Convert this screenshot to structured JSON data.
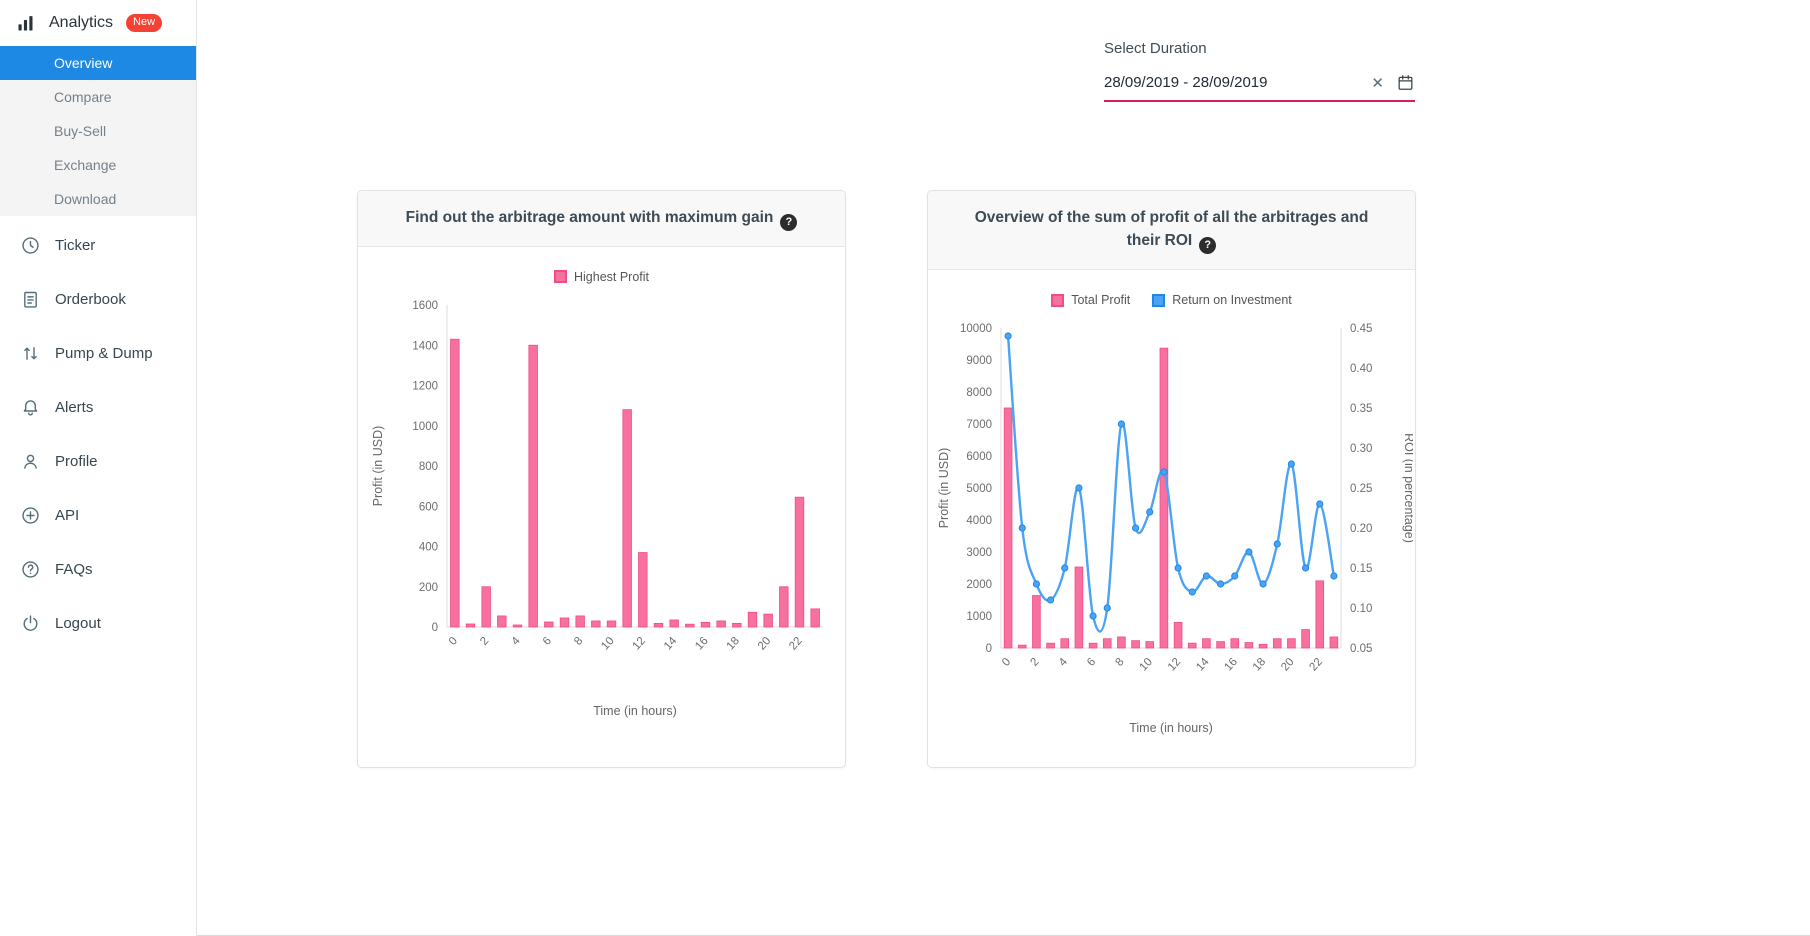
{
  "colors": {
    "active_blue": "#1E88E5",
    "badge_red": "#F44336",
    "underline_pink": "#D81B60",
    "bar_pink": "#F8709F",
    "bar_pink_border": "#EE4D86",
    "line_blue": "#4BA3F5",
    "line_blue_border": "#1E88E5"
  },
  "sidebar": {
    "brand": {
      "label": "Analytics",
      "badge": "New"
    },
    "submenu": [
      {
        "label": "Overview",
        "active": true
      },
      {
        "label": "Compare",
        "active": false
      },
      {
        "label": "Buy-Sell",
        "active": false
      },
      {
        "label": "Exchange",
        "active": false
      },
      {
        "label": "Download",
        "active": false
      }
    ],
    "items": [
      {
        "icon": "clock-icon",
        "label": "Ticker"
      },
      {
        "icon": "orderbook-icon",
        "label": "Orderbook"
      },
      {
        "icon": "pump-dump-icon",
        "label": "Pump & Dump"
      },
      {
        "icon": "bell-icon",
        "label": "Alerts"
      },
      {
        "icon": "profile-icon",
        "label": "Profile"
      },
      {
        "icon": "api-icon",
        "label": "API"
      },
      {
        "icon": "question-icon",
        "label": "FAQs"
      },
      {
        "icon": "power-icon",
        "label": "Logout"
      }
    ]
  },
  "duration": {
    "label": "Select Duration",
    "value": "28/09/2019 - 28/09/2019"
  },
  "chart_data": [
    {
      "type": "bar",
      "title": "Find out the arbitrage amount with maximum gain",
      "xlabel": "Time (in hours)",
      "ylabel": "Profit (in USD)",
      "ylim": [
        0,
        1600
      ],
      "ytick_step": 200,
      "xtick_every": 2,
      "grid": false,
      "legend_position": "top",
      "categories": [
        "0",
        "1",
        "2",
        "3",
        "4",
        "5",
        "6",
        "7",
        "8",
        "9",
        "10",
        "11",
        "12",
        "13",
        "14",
        "15",
        "16",
        "17",
        "18",
        "19",
        "20",
        "21",
        "22",
        "23"
      ],
      "series": [
        {
          "name": "Highest Profit",
          "type": "bar",
          "axis": "left",
          "color": "#F8709F",
          "border": "#EE4D86",
          "values": [
            1430,
            15,
            200,
            55,
            10,
            1400,
            25,
            45,
            55,
            30,
            30,
            1080,
            370,
            18,
            35,
            14,
            23,
            30,
            18,
            73,
            64,
            200,
            645,
            90
          ]
        }
      ]
    },
    {
      "type": "bar+line",
      "title": "Overview of the sum of profit of all the arbitrages and their ROI",
      "xlabel": "Time (in hours)",
      "ylabel_left": "Profit (in USD)",
      "ylabel_right": "ROI (in percentage)",
      "ylim_left": [
        0,
        10000
      ],
      "ytick_left_step": 1000,
      "ylim_right": [
        0.05,
        0.45
      ],
      "ytick_right_step": 0.05,
      "xtick_every": 2,
      "grid": false,
      "legend_position": "top",
      "categories": [
        "0",
        "1",
        "2",
        "3",
        "4",
        "5",
        "6",
        "7",
        "8",
        "9",
        "10",
        "11",
        "12",
        "13",
        "14",
        "15",
        "16",
        "17",
        "18",
        "19",
        "20",
        "21",
        "22",
        "23"
      ],
      "series": [
        {
          "name": "Total Profit",
          "type": "bar",
          "axis": "left",
          "color": "#F8709F",
          "border": "#EE4D86",
          "values": [
            7500,
            90,
            1640,
            150,
            290,
            2530,
            150,
            290,
            345,
            230,
            200,
            9370,
            800,
            150,
            290,
            200,
            290,
            170,
            115,
            290,
            290,
            575,
            2100,
            345
          ]
        },
        {
          "name": "Return on Investment",
          "type": "line",
          "axis": "right",
          "color": "#4BA3F5",
          "border": "#1E88E5",
          "values": [
            0.44,
            0.2,
            0.13,
            0.11,
            0.15,
            0.25,
            0.09,
            0.1,
            0.33,
            0.2,
            0.22,
            0.27,
            0.15,
            0.12,
            0.14,
            0.13,
            0.14,
            0.17,
            0.13,
            0.18,
            0.28,
            0.15,
            0.23,
            0.14
          ]
        }
      ]
    }
  ]
}
